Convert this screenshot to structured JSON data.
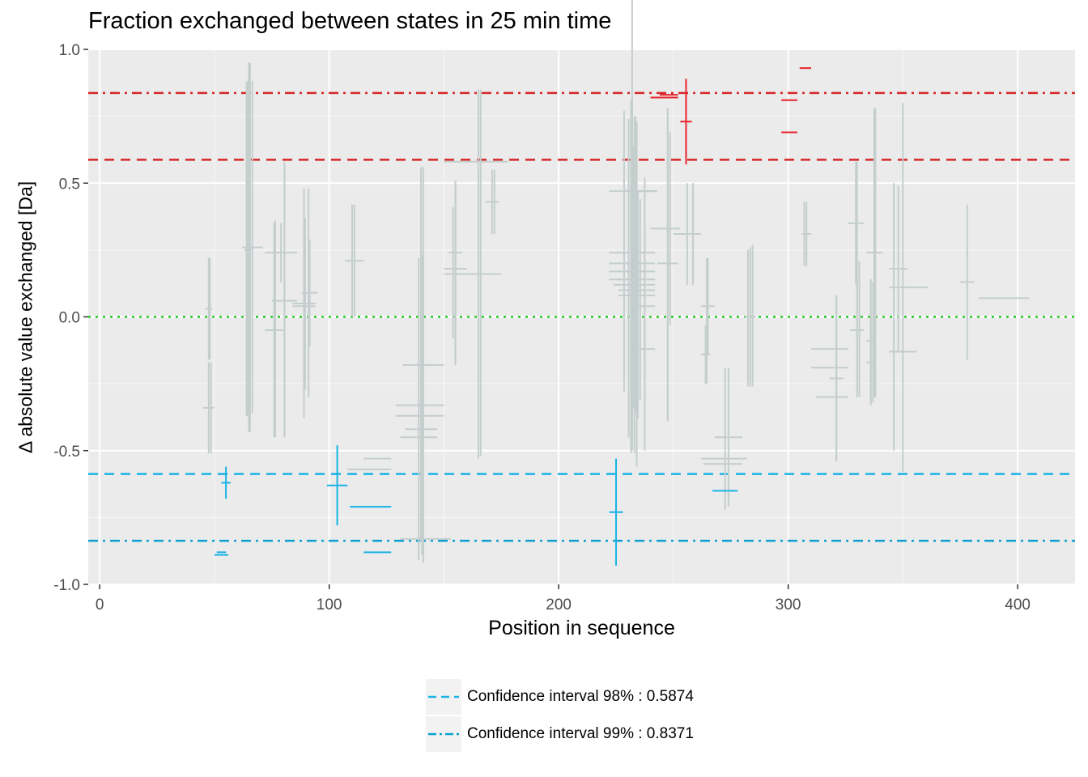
{
  "chart_data": {
    "type": "scatter",
    "title": "Fraction exchanged between states in 25 min time",
    "xlabel": "Position in sequence",
    "ylabel": "Δ absolute value exchanged [Da]",
    "xlim": [
      -5,
      425
    ],
    "ylim": [
      -1.0,
      1.0
    ],
    "x_ticks": [
      0,
      100,
      200,
      300,
      400
    ],
    "x_tick_labels": [
      "0",
      "100",
      "200",
      "300",
      "400"
    ],
    "y_ticks": [
      -1.0,
      -0.5,
      0.0,
      0.5,
      1.0
    ],
    "y_tick_labels": [
      "-1.0",
      "-0.5",
      "0.0",
      "0.5",
      "1.0"
    ],
    "grid": true,
    "reference_lines": [
      {
        "y": 0.8371,
        "style": "dashdot",
        "color": "#d62728"
      },
      {
        "y": 0.5874,
        "style": "dashed",
        "color": "#d62728"
      },
      {
        "y": 0.0,
        "style": "dotted",
        "color": "#22cc22"
      },
      {
        "y": -0.5874,
        "style": "dashed",
        "color": "#1ab3e6"
      },
      {
        "y": -0.8371,
        "style": "dashdot",
        "color": "#0a9fd0"
      }
    ],
    "series": [
      {
        "color": "#c4cecd",
        "points": [
          {
            "x1": 46,
            "x2": 49,
            "y": 0.03,
            "err": 0.19
          },
          {
            "x1": 45,
            "x2": 50,
            "y": -0.34,
            "err": 0.17
          },
          {
            "x1": 62,
            "x2": 71,
            "y": 0.26,
            "err": 0.62
          },
          {
            "x1": 63,
            "x2": 66,
            "y": 0.25,
            "err": 0.62
          },
          {
            "x1": 64,
            "x2": 67,
            "y": 0.26,
            "err": 0.69
          },
          {
            "x1": 72,
            "x2": 86,
            "y": 0.24,
            "err": 0.11
          },
          {
            "x1": 72,
            "x2": 80,
            "y": -0.05,
            "err": 0.4
          },
          {
            "x1": 75,
            "x2": 86,
            "y": 0.06,
            "err": 0.51
          },
          {
            "x1": 84,
            "x2": 94,
            "y": 0.04,
            "err": 0.31
          },
          {
            "x1": 84,
            "x2": 94,
            "y": 0.05,
            "err": 0.43
          },
          {
            "x1": 88,
            "x2": 95,
            "y": 0.09,
            "err": 0.2
          },
          {
            "x1": 107,
            "x2": 115,
            "y": 0.21,
            "err": 0.21
          },
          {
            "x1": 108,
            "x2": 127,
            "y": -0.57,
            "err": 0.0
          },
          {
            "x1": 115,
            "x2": 127,
            "y": -0.53,
            "err": 0.0
          },
          {
            "x1": 131,
            "x2": 153,
            "y": -0.83,
            "err": 0.0
          },
          {
            "x1": 132,
            "x2": 150,
            "y": -0.18,
            "err": 0.74
          },
          {
            "x1": 129,
            "x2": 150,
            "y": -0.33,
            "err": 0.0
          },
          {
            "x1": 129,
            "x2": 150,
            "y": -0.37,
            "err": 0.0
          },
          {
            "x1": 133,
            "x2": 147,
            "y": -0.42,
            "err": 0.0
          },
          {
            "x1": 131,
            "x2": 147,
            "y": -0.45,
            "err": 0.0
          },
          {
            "x1": 138,
            "x2": 143,
            "y": -0.33,
            "err": 0.56
          },
          {
            "x1": 150,
            "x2": 178,
            "y": 0.58,
            "err": 0.0
          },
          {
            "x1": 150,
            "x2": 160,
            "y": 0.18,
            "err": 0.33
          },
          {
            "x1": 150,
            "x2": 160,
            "y": 0.16,
            "err": 0.34
          },
          {
            "x1": 152,
            "x2": 158,
            "y": 0.24,
            "err": 0.26
          },
          {
            "x1": 155,
            "x2": 175,
            "y": 0.16,
            "err": 0.69
          },
          {
            "x1": 168,
            "x2": 174,
            "y": 0.43,
            "err": 0.12
          },
          {
            "x1": 222,
            "x2": 242,
            "y": 0.47,
            "err": 0.76
          },
          {
            "x1": 222,
            "x2": 242,
            "y": 0.24,
            "err": 0.53
          },
          {
            "x1": 222,
            "x2": 242,
            "y": 0.2,
            "err": 0.62
          },
          {
            "x1": 222,
            "x2": 242,
            "y": 0.17,
            "err": 0.62
          },
          {
            "x1": 222,
            "x2": 242,
            "y": 0.14,
            "err": 0.64
          },
          {
            "x1": 224,
            "x2": 242,
            "y": 0.12,
            "err": 0.63
          },
          {
            "x1": 226,
            "x2": 242,
            "y": 0.1,
            "err": 0.63
          },
          {
            "x1": 226,
            "x2": 242,
            "y": 0.08,
            "err": 0.64
          },
          {
            "x1": 233,
            "x2": 242,
            "y": 0.04,
            "err": 0.48
          },
          {
            "x1": 233,
            "x2": 242,
            "y": -0.12,
            "err": 0.38
          },
          {
            "x1": 231,
            "x2": 243,
            "y": 0.47,
            "err": 0.0
          },
          {
            "x1": 240,
            "x2": 253,
            "y": 0.33,
            "err": 0.0
          },
          {
            "x1": 243,
            "x2": 252,
            "y": 0.2,
            "err": 0.58
          },
          {
            "x1": 250,
            "x2": 262,
            "y": 0.31,
            "err": 0.19
          },
          {
            "x1": 262,
            "x2": 268,
            "y": 0.04,
            "err": 0.18
          },
          {
            "x1": 262,
            "x2": 266,
            "y": -0.14,
            "err": 0.11
          },
          {
            "x1": 262,
            "x2": 282,
            "y": -0.53,
            "err": 0.0
          },
          {
            "x1": 263,
            "x2": 280,
            "y": -0.55,
            "err": 0.0
          },
          {
            "x1": 268,
            "x2": 280,
            "y": -0.45,
            "err": 0.26
          },
          {
            "x1": 281,
            "x2": 286,
            "y": 0.0,
            "err": 0.26
          },
          {
            "x1": 306,
            "x2": 310,
            "y": 0.31,
            "err": 0.12
          },
          {
            "x1": 310,
            "x2": 326,
            "y": -0.12,
            "err": 0.0
          },
          {
            "x1": 310,
            "x2": 326,
            "y": -0.19,
            "err": 0.0
          },
          {
            "x1": 318,
            "x2": 324,
            "y": -0.23,
            "err": 0.31
          },
          {
            "x1": 312,
            "x2": 326,
            "y": -0.3,
            "err": 0.0
          },
          {
            "x1": 326,
            "x2": 333,
            "y": 0.35,
            "err": 0.23
          },
          {
            "x1": 327,
            "x2": 333,
            "y": -0.05,
            "err": 0.25
          },
          {
            "x1": 334,
            "x2": 341,
            "y": 0.24,
            "err": 0.54
          },
          {
            "x1": 334,
            "x2": 338,
            "y": -0.09,
            "err": 0.23
          },
          {
            "x1": 334,
            "x2": 338,
            "y": -0.17,
            "err": 0.15
          },
          {
            "x1": 344,
            "x2": 352,
            "y": 0.18,
            "err": 0.31
          },
          {
            "x1": 344,
            "x2": 356,
            "y": -0.13,
            "err": 0.0
          },
          {
            "x1": 344,
            "x2": 361,
            "y": 0.11,
            "err": 0.0
          },
          {
            "x1": 350,
            "x2": 352,
            "y": -0.13,
            "err": 0.0
          },
          {
            "x1": 375,
            "x2": 381,
            "y": 0.13,
            "err": 0.29
          },
          {
            "x1": 383,
            "x2": 405,
            "y": 0.07,
            "err": 0.0
          }
        ],
        "verticals": [
          {
            "x": 48,
            "y1": -0.16,
            "y2": 0.22
          },
          {
            "x": 48.5,
            "y1": -0.51,
            "y2": -0.17
          },
          {
            "x": 64,
            "y1": -0.37,
            "y2": 0.88
          },
          {
            "x": 64.8,
            "y1": -0.38,
            "y2": 0.89
          },
          {
            "x": 65,
            "y1": -0.43,
            "y2": 0.95
          },
          {
            "x": 76.5,
            "y1": -0.45,
            "y2": 0.36
          },
          {
            "x": 80.5,
            "y1": -0.45,
            "y2": 0.58
          },
          {
            "x": 89.5,
            "y1": -0.27,
            "y2": 0.37
          },
          {
            "x": 91,
            "y1": -0.3,
            "y2": 0.48
          },
          {
            "x": 110,
            "y1": 0.0,
            "y2": 0.42
          },
          {
            "x": 139,
            "y1": -0.91,
            "y2": 0.22
          },
          {
            "x": 140,
            "y1": -0.84,
            "y2": 0.56
          },
          {
            "x": 154,
            "y1": -0.08,
            "y2": 0.41
          },
          {
            "x": 155,
            "y1": -0.18,
            "y2": 0.51
          },
          {
            "x": 166,
            "y1": -0.52,
            "y2": 0.85
          },
          {
            "x": 172,
            "y1": 0.31,
            "y2": 0.55
          },
          {
            "x": 228.5,
            "y1": -0.28,
            "y2": 0.77
          },
          {
            "x": 230.5,
            "y1": -0.45,
            "y2": 0.74
          },
          {
            "x": 231.5,
            "y1": -0.51,
            "y2": 0.81
          },
          {
            "x": 232.5,
            "y1": -0.34,
            "y2": 0.64
          },
          {
            "x": 233.5,
            "y1": -0.36,
            "y2": 0.75
          },
          {
            "x": 234.5,
            "y1": -0.38,
            "y2": 0.47
          },
          {
            "x": 235.5,
            "y1": -0.31,
            "y2": 0.44
          },
          {
            "x": 237.5,
            "y1": -0.19,
            "y2": 0.33
          },
          {
            "x": 247.5,
            "y1": -0.39,
            "y2": 0.78
          },
          {
            "x": 248.5,
            "y1": -0.03,
            "y2": 0.69
          },
          {
            "x": 258.5,
            "y1": 0.12,
            "y2": 0.5
          },
          {
            "x": 264.5,
            "y1": -0.25,
            "y2": 0.22
          },
          {
            "x": 272.5,
            "y1": -0.72,
            "y2": -0.19
          },
          {
            "x": 282.5,
            "y1": -0.26,
            "y2": 0.25
          },
          {
            "x": 284.5,
            "y1": -0.26,
            "y2": 0.27
          },
          {
            "x": 307,
            "y1": 0.19,
            "y2": 0.43
          },
          {
            "x": 321,
            "y1": -0.54,
            "y2": 0.08
          },
          {
            "x": 330,
            "y1": 0.11,
            "y2": 0.58
          },
          {
            "x": 331,
            "y1": -0.3,
            "y2": 0.21
          },
          {
            "x": 336,
            "y1": -0.33,
            "y2": 0.14
          },
          {
            "x": 337,
            "y1": -0.32,
            "y2": 0.13
          },
          {
            "x": 338,
            "y1": -0.3,
            "y2": 0.78
          },
          {
            "x": 346,
            "y1": -0.5,
            "y2": 0.5
          },
          {
            "x": 350,
            "y1": -0.58,
            "y2": 0.8
          }
        ]
      },
      {
        "color": "#e8232b",
        "points": [
          {
            "x1": 240,
            "x2": 252,
            "y": 0.82,
            "err": 0.0
          },
          {
            "x1": 244,
            "x2": 252,
            "y": 0.83,
            "err": 0.0
          },
          {
            "x1": 253,
            "x2": 258,
            "y": 0.73,
            "err": 0.16
          },
          {
            "x1": 297,
            "x2": 304,
            "y": 0.69,
            "err": 0.0
          },
          {
            "x1": 297,
            "x2": 304,
            "y": 0.81,
            "err": 0.0
          },
          {
            "x1": 305,
            "x2": 310,
            "y": 0.93,
            "err": 0.0
          }
        ],
        "verticals": []
      },
      {
        "color": "#1ab3e6",
        "points": [
          {
            "x1": 50,
            "x2": 56,
            "y": -0.89,
            "err": 0.0
          },
          {
            "x1": 51,
            "x2": 55,
            "y": -0.88,
            "err": 0.0
          },
          {
            "x1": 53,
            "x2": 57,
            "y": -0.62,
            "err": 0.06
          },
          {
            "x1": 99,
            "x2": 108,
            "y": -0.63,
            "err": 0.15
          },
          {
            "x1": 109,
            "x2": 127,
            "y": -0.71,
            "err": 0.0
          },
          {
            "x1": 115,
            "x2": 127,
            "y": -0.88,
            "err": 0.0
          },
          {
            "x1": 222,
            "x2": 228,
            "y": -0.73,
            "err": 0.2
          },
          {
            "x1": 267,
            "x2": 278,
            "y": -0.65,
            "err": 0.0
          }
        ],
        "verticals": []
      }
    ],
    "legend": {
      "position": "bottom",
      "entries": [
        {
          "label": "Confidence interval 98% : 0.5874",
          "style": "dashed"
        },
        {
          "label": "Confidence interval 99% : 0.8371",
          "style": "dashdot"
        }
      ]
    }
  }
}
